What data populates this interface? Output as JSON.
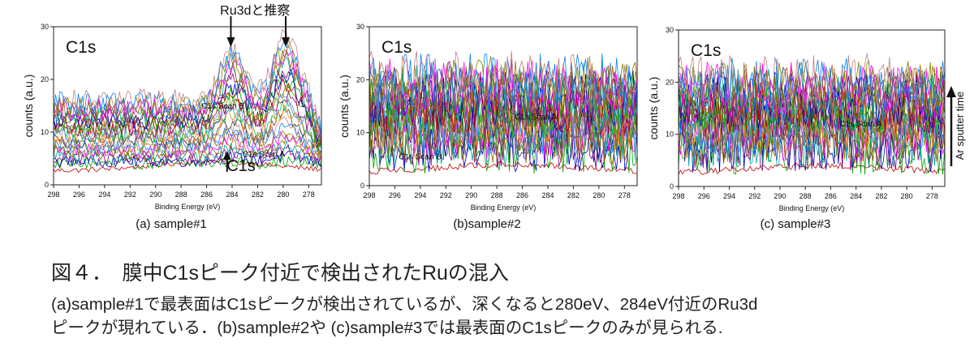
{
  "figure": {
    "title": "図４．　膜中C1sピーク付近で検出されたRuの混入",
    "caption_lines": [
      "(a)sample#1で最表面はC1sピークが検出されているが、深くなると280eV、284eV付近のRu3d",
      "ピークが現れている．(b)sample#2や (c)sample#3では最表面のC1sピークのみが見られる."
    ],
    "side_arrow_label": "Ar sputter time"
  },
  "chart_data": [
    {
      "type": "line",
      "panel_label": "C1s",
      "caption": "(a) sample#1",
      "xlabel": "Binding Energy (eV)",
      "ylabel": "counts (a.u.)",
      "xlim": [
        298,
        277
      ],
      "ylim": [
        0,
        30
      ],
      "x_ticks": [
        298,
        296,
        294,
        292,
        290,
        288,
        286,
        284,
        282,
        280,
        278
      ],
      "y_ticks": [
        0,
        10,
        20,
        30
      ],
      "grid": false,
      "profile": "sample1",
      "trace_count": 26,
      "trace_colors": [
        "#c00000",
        "#00a000",
        "#0000c0",
        "#800080",
        "#00a0a0",
        "#a06000",
        "#ff00ff",
        "#808000",
        "#0080ff",
        "#c08080",
        "#404040",
        "#ff8000",
        "#00c060",
        "#8080ff",
        "#a00060",
        "#60a000"
      ],
      "annotations": [
        {
          "text": "C1s Scan B",
          "x": 286.4,
          "y": 14.5
        },
        {
          "text": "C1s Scan A",
          "x": 283.2,
          "y": 5.3
        },
        {
          "text": "C1s",
          "x": 283.3,
          "y": 2.6,
          "large": true
        },
        {
          "text": "Ru3dと推察",
          "x": 282.2,
          "y": 32.3,
          "large": true
        }
      ],
      "arrows": [
        {
          "label": "C1s",
          "x": 284.4,
          "direction": "up"
        },
        {
          "label": "Ru3d",
          "x": 284.1,
          "direction": "down"
        },
        {
          "label": "Ru3d",
          "x": 279.8,
          "direction": "down"
        }
      ]
    },
    {
      "type": "line",
      "panel_label": "C1s",
      "caption": "(b)sample#2",
      "xlabel": "Binding Energy (eV)",
      "ylabel": "counts (a.u.)",
      "xlim": [
        298,
        277
      ],
      "ylim": [
        0,
        30
      ],
      "x_ticks": [
        298,
        296,
        294,
        292,
        290,
        288,
        286,
        284,
        282,
        280,
        278
      ],
      "y_ticks": [
        0,
        10,
        20,
        30
      ],
      "grid": false,
      "profile": "flat",
      "trace_count": 26,
      "trace_colors": [
        "#c00000",
        "#00a000",
        "#0000c0",
        "#800080",
        "#00a0a0",
        "#a06000",
        "#ff00ff",
        "#808000",
        "#0080ff",
        "#c08080",
        "#404040",
        "#ff8000",
        "#00c060",
        "#8080ff",
        "#a00060",
        "#60a000"
      ],
      "annotations": [
        {
          "text": "C1s Scan A",
          "x": 286.6,
          "y": 12.5
        },
        {
          "text": "C1s Scan B",
          "x": 295.7,
          "y": 5.0
        }
      ]
    },
    {
      "type": "line",
      "panel_label": "C1s",
      "caption": "(c) sample#3",
      "xlabel": "Binding Energy (eV)",
      "ylabel": "counts (a.u.)",
      "xlim": [
        298,
        277
      ],
      "ylim": [
        0,
        30
      ],
      "x_ticks": [
        298,
        296,
        294,
        292,
        290,
        288,
        286,
        284,
        282,
        280,
        278
      ],
      "y_ticks": [
        0,
        10,
        20,
        30
      ],
      "grid": false,
      "profile": "flat",
      "trace_count": 26,
      "trace_colors": [
        "#c00000",
        "#00a000",
        "#0000c0",
        "#800080",
        "#00a0a0",
        "#a06000",
        "#ff00ff",
        "#808000",
        "#0080ff",
        "#c08080",
        "#404040",
        "#ff8000",
        "#00c060",
        "#8080ff",
        "#a00060",
        "#60a000"
      ],
      "annotations": [
        {
          "text": "C1s Scan A",
          "x": 285.3,
          "y": 11.5
        }
      ]
    }
  ]
}
